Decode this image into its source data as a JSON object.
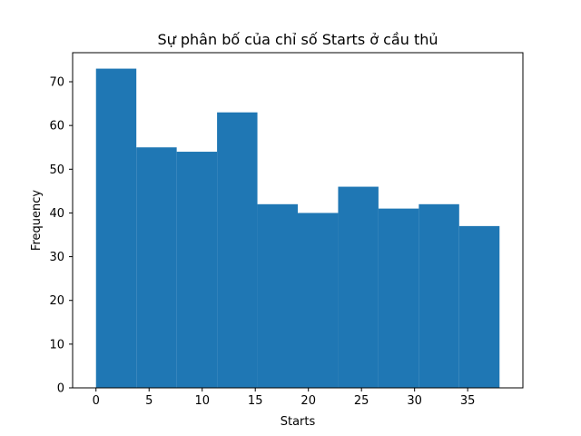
{
  "chart_data": {
    "type": "bar",
    "title": "Sự phân bố của chỉ số Starts ở cầu thủ",
    "xlabel": "Starts",
    "ylabel": "Frequency",
    "bin_edges": [
      0,
      3.8,
      7.6,
      11.4,
      15.2,
      19.0,
      22.8,
      26.6,
      30.4,
      34.2,
      38.0
    ],
    "values": [
      73,
      55,
      54,
      63,
      42,
      40,
      46,
      41,
      42,
      37
    ],
    "xlim": [
      -2.2,
      40.2
    ],
    "ylim": [
      0,
      76.65
    ],
    "xticks": [
      0,
      5,
      10,
      15,
      20,
      25,
      30,
      35
    ],
    "yticks": [
      0,
      10,
      20,
      30,
      40,
      50,
      60,
      70
    ],
    "bar_color": "#1f77b4",
    "grid": false,
    "legend": "none"
  }
}
